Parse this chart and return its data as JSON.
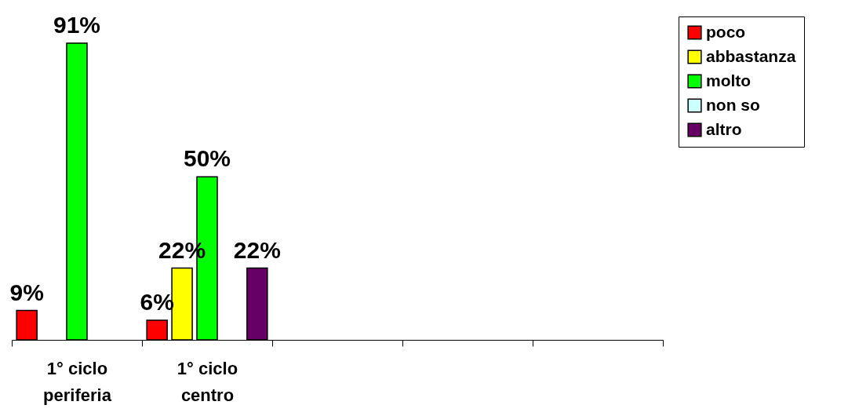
{
  "chart_data": {
    "type": "bar",
    "categories": [
      "1° ciclo\nperiferia",
      "1° ciclo\ncentro",
      null,
      null,
      null
    ],
    "series": [
      {
        "name": "poco",
        "color": "#ff0000",
        "values": [
          9,
          6,
          null,
          null,
          null
        ],
        "value_labels": [
          "9%",
          "6%",
          null,
          null,
          null
        ]
      },
      {
        "name": "abbastanza",
        "color": "#ffff00",
        "values": [
          null,
          22,
          null,
          null,
          null
        ],
        "value_labels": [
          null,
          "22%",
          null,
          null,
          null
        ]
      },
      {
        "name": "molto",
        "color": "#00ff00",
        "values": [
          91,
          50,
          null,
          null,
          null
        ],
        "value_labels": [
          "91%",
          "50%",
          null,
          null,
          null
        ]
      },
      {
        "name": "non so",
        "color": "#ccffff",
        "values": [
          null,
          null,
          null,
          null,
          null
        ]
      },
      {
        "name": "altro",
        "color": "#660066",
        "values": [
          null,
          22,
          null,
          null,
          null
        ],
        "value_labels": [
          null,
          "22%",
          null,
          null,
          null
        ]
      }
    ],
    "legend": "right",
    "grid": false,
    "tick_labels": "x"
  }
}
